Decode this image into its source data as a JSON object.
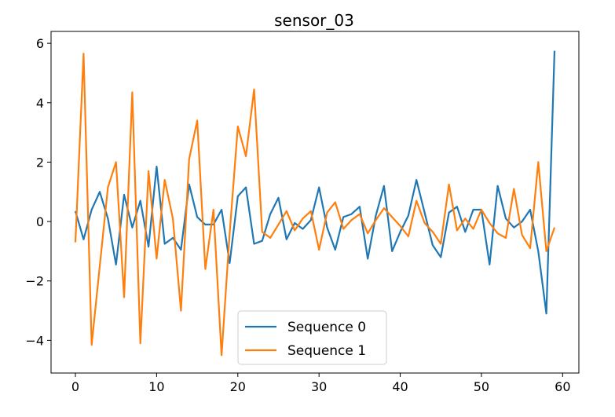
{
  "chart_data": {
    "type": "line",
    "title": "sensor_03",
    "xlabel": "",
    "ylabel": "",
    "xlim": [
      -3,
      62
    ],
    "ylim": [
      -5.1,
      6.4
    ],
    "xticks": [
      0,
      10,
      20,
      30,
      40,
      50,
      60
    ],
    "yticks": [
      -4,
      -2,
      0,
      2,
      4,
      6
    ],
    "grid": false,
    "legend_position": "bottom-center",
    "x": [
      0,
      1,
      2,
      3,
      4,
      5,
      6,
      7,
      8,
      9,
      10,
      11,
      12,
      13,
      14,
      15,
      16,
      17,
      18,
      19,
      20,
      21,
      22,
      23,
      24,
      25,
      26,
      27,
      28,
      29,
      30,
      31,
      32,
      33,
      34,
      35,
      36,
      37,
      38,
      39,
      40,
      41,
      42,
      43,
      44,
      45,
      46,
      47,
      48,
      49,
      50,
      51,
      52,
      53,
      54,
      55,
      56,
      57,
      58,
      59
    ],
    "series": [
      {
        "name": "Sequence 0",
        "color": "#1f77b4",
        "values": [
          0.35,
          -0.6,
          0.4,
          1.0,
          0.1,
          -1.45,
          0.9,
          -0.2,
          0.7,
          -0.85,
          1.85,
          -0.75,
          -0.55,
          -0.95,
          1.25,
          0.15,
          -0.1,
          -0.1,
          0.4,
          -1.4,
          0.85,
          1.15,
          -0.75,
          -0.65,
          0.25,
          0.8,
          -0.6,
          -0.05,
          -0.25,
          0.05,
          1.15,
          -0.2,
          -0.95,
          0.15,
          0.25,
          0.5,
          -1.25,
          0.2,
          1.2,
          -1.0,
          -0.35,
          0.2,
          1.4,
          0.3,
          -0.8,
          -1.2,
          0.3,
          0.5,
          -0.35,
          0.4,
          0.4,
          -1.45,
          1.2,
          0.1,
          -0.2,
          0.0,
          0.4,
          -1.0,
          -3.1,
          5.75
        ]
      },
      {
        "name": "Sequence 1",
        "color": "#ff7f0e",
        "values": [
          -0.7,
          5.65,
          -4.15,
          -1.5,
          1.15,
          2.0,
          -2.55,
          4.35,
          -4.1,
          1.7,
          -1.25,
          1.4,
          0.1,
          -3.0,
          2.1,
          3.4,
          -1.6,
          0.4,
          -4.5,
          -0.4,
          3.2,
          2.2,
          4.45,
          -0.35,
          -0.55,
          -0.1,
          0.35,
          -0.3,
          0.1,
          0.35,
          -0.95,
          0.3,
          0.65,
          -0.25,
          0.05,
          0.25,
          -0.4,
          0.05,
          0.45,
          0.15,
          -0.15,
          -0.5,
          0.7,
          -0.05,
          -0.35,
          -0.75,
          1.25,
          -0.3,
          0.1,
          -0.25,
          0.4,
          -0.05,
          -0.4,
          -0.55,
          1.1,
          -0.45,
          -0.9,
          2.0,
          -1.0,
          -0.2
        ]
      }
    ]
  }
}
